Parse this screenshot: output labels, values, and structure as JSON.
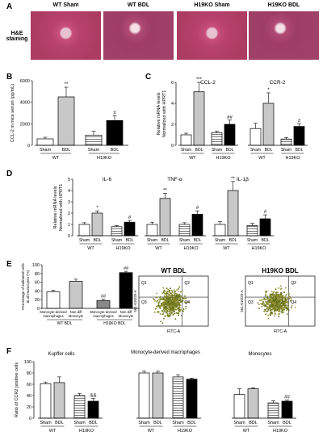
{
  "panelA": {
    "letter": "A",
    "side_label": "H&E",
    "side_label2": "staining",
    "titles": [
      "WT  Sham",
      "WT BDL",
      "H19KO  Sham",
      "H19KO  BDL"
    ]
  },
  "panelB": {
    "letter": "B",
    "ylabel": "CCL-2 in mice serum (pg/mL)",
    "groups": [
      "WT",
      "H19KO"
    ],
    "chart_data": {
      "type": "bar",
      "categories": [
        "Sham",
        "BDL",
        "Sham",
        "BDL"
      ],
      "values": [
        600,
        4500,
        950,
        2300
      ],
      "errors": [
        150,
        900,
        350,
        450
      ],
      "ylim": [
        0,
        6000
      ],
      "yticks": [
        "0",
        "2000",
        "4000",
        "6000"
      ],
      "annotations": [
        "",
        "**",
        "",
        "#"
      ]
    }
  },
  "panelC": {
    "letter": "C",
    "ylabel1": "Relative mRNA levels",
    "ylabel2": "Normalized with HPRT1",
    "yticks": [
      "0",
      "2",
      "4",
      "6"
    ],
    "subtitles": [
      "CCL-2",
      "CCR-2"
    ],
    "groups": [
      "WT",
      "H19KO",
      "WT",
      "H19KO"
    ],
    "chart_data": [
      {
        "type": "bar",
        "name": "CCL-2",
        "categories": [
          "Sham",
          "BDL",
          "Sham",
          "BDL"
        ],
        "values": [
          1.0,
          5.1,
          1.2,
          2.0
        ],
        "errors": [
          0.15,
          0.9,
          0.15,
          0.4
        ],
        "ylim": [
          0,
          6
        ],
        "annotations": [
          "",
          "***",
          "",
          "##"
        ]
      },
      {
        "type": "bar",
        "name": "CCR-2",
        "categories": [
          "Sham",
          "BDL",
          "Sham",
          "BDL"
        ],
        "values": [
          1.6,
          4.0,
          0.6,
          1.8
        ],
        "errors": [
          0.5,
          1.0,
          0.15,
          0.25
        ],
        "ylim": [
          0,
          6
        ],
        "annotations": [
          "",
          "*",
          "",
          "#"
        ]
      }
    ]
  },
  "panelD": {
    "letter": "D",
    "ylabel1": "Relative mRNA levels",
    "ylabel2": "Normalized with HPRT1",
    "yticks": [
      "0",
      "1",
      "2",
      "3",
      "4",
      "5"
    ],
    "subtitles": [
      "IL-6",
      "TNF-α",
      "IL-1β"
    ],
    "groups": [
      "WT",
      "H19KO",
      "WT",
      "H19KO",
      "WT",
      "H19KO"
    ],
    "chart_data": [
      {
        "type": "bar",
        "name": "IL-6",
        "categories": [
          "Sham",
          "BDL",
          "Sham",
          "BDL"
        ],
        "values": [
          1.0,
          2.0,
          0.8,
          1.2
        ],
        "errors": [
          0.15,
          0.2,
          0.1,
          0.15
        ],
        "ylim": [
          0,
          5
        ],
        "annotations": [
          "",
          "*",
          "",
          "#"
        ]
      },
      {
        "type": "bar",
        "name": "TNF-α",
        "categories": [
          "Sham",
          "BDL",
          "Sham",
          "BDL"
        ],
        "values": [
          1.0,
          3.3,
          1.0,
          1.9
        ],
        "errors": [
          0.2,
          0.45,
          0.15,
          0.3
        ],
        "ylim": [
          0,
          5
        ],
        "annotations": [
          "",
          "**",
          "",
          "#"
        ]
      },
      {
        "type": "bar",
        "name": "IL-1β",
        "categories": [
          "Sham",
          "BDL",
          "Sham",
          "BDL"
        ],
        "values": [
          1.0,
          4.0,
          0.9,
          1.5
        ],
        "errors": [
          0.25,
          0.8,
          0.2,
          0.35
        ],
        "ylim": [
          0,
          5
        ],
        "annotations": [
          "",
          "**",
          "",
          "#"
        ]
      }
    ]
  },
  "panelE": {
    "letter": "E",
    "ylabel1": "Percentage of indicated cells",
    "ylabel2": "in all monocytes (%)",
    "yticks": [
      "0",
      "20",
      "40",
      "60",
      "80",
      "100"
    ],
    "bar_labels": [
      "Monocyte-derived macrophages",
      "Non-diff Monocyte",
      "Monocyte-derived macrophages",
      "Non-diff Monocyte"
    ],
    "groups": [
      "WT BDL",
      "H19KO BDL"
    ],
    "chart_data": {
      "type": "bar",
      "categories": [
        "Monocyte-derived macrophages",
        "Non-diff Monocyte",
        "Monocyte-derived macrophages",
        "Non-diff Monocyte"
      ],
      "values": [
        38,
        62,
        18,
        82
      ],
      "errors": [
        4,
        5,
        3,
        3
      ],
      "ylim": [
        0,
        100
      ],
      "annotations": [
        "",
        "",
        "##",
        "##"
      ]
    },
    "flow1": {
      "title": "WT BDL",
      "ylabel": "561-610/20-A",
      "xlabel": "FITC-A",
      "quadrants": [
        "Q1",
        "Q2",
        "Q3",
        "Q4"
      ]
    },
    "flow2": {
      "title": "H19KO  BDL",
      "ylabel": "561-610/20-A",
      "xlabel": "FITC-A",
      "quadrants": [
        "Q1",
        "Q2",
        "Q3",
        "Q4"
      ]
    }
  },
  "panelF": {
    "letter": "F",
    "ylabel": "Ratio of CCR2 positive cells",
    "yticks": [
      "0",
      "20",
      "40",
      "60",
      "80",
      "100"
    ],
    "subtitles": [
      "Kupffer cells",
      "Monocyte-derived macrophages",
      "Monocytes"
    ],
    "groups": [
      "WT",
      "H19KO",
      "WT",
      "H19KO",
      "WT",
      "H19KO"
    ],
    "chart_data": [
      {
        "type": "bar",
        "name": "Kupffer cells",
        "categories": [
          "Sham",
          "BDL",
          "Sham",
          "BDL"
        ],
        "values": [
          61,
          63,
          40,
          30
        ],
        "errors": [
          3,
          10,
          4,
          5
        ],
        "ylim": [
          0,
          100
        ],
        "annotations": [
          "",
          "",
          "",
          "&&"
        ]
      },
      {
        "type": "bar",
        "name": "Monocyte-derived macrophages",
        "categories": [
          "Sham",
          "BDL",
          "Sham",
          "BDL"
        ],
        "values": [
          80,
          80,
          73,
          69
        ],
        "errors": [
          3,
          3,
          4,
          2
        ],
        "ylim": [
          0,
          100
        ],
        "annotations": [
          "",
          "",
          "",
          ""
        ]
      },
      {
        "type": "bar",
        "name": "Monocytes",
        "categories": [
          "Sham",
          "BDL",
          "Sham",
          "BDL"
        ],
        "values": [
          42,
          52,
          27,
          30
        ],
        "errors": [
          10,
          2,
          4,
          2
        ],
        "ylim": [
          0,
          100
        ],
        "annotations": [
          "",
          "",
          "",
          "##"
        ]
      }
    ]
  },
  "colors": {
    "wt_sham": "#ffffff",
    "wt_bdl": "#c8c8c8",
    "ko_sham": "#ffffff",
    "ko_bdl": "#000000"
  }
}
